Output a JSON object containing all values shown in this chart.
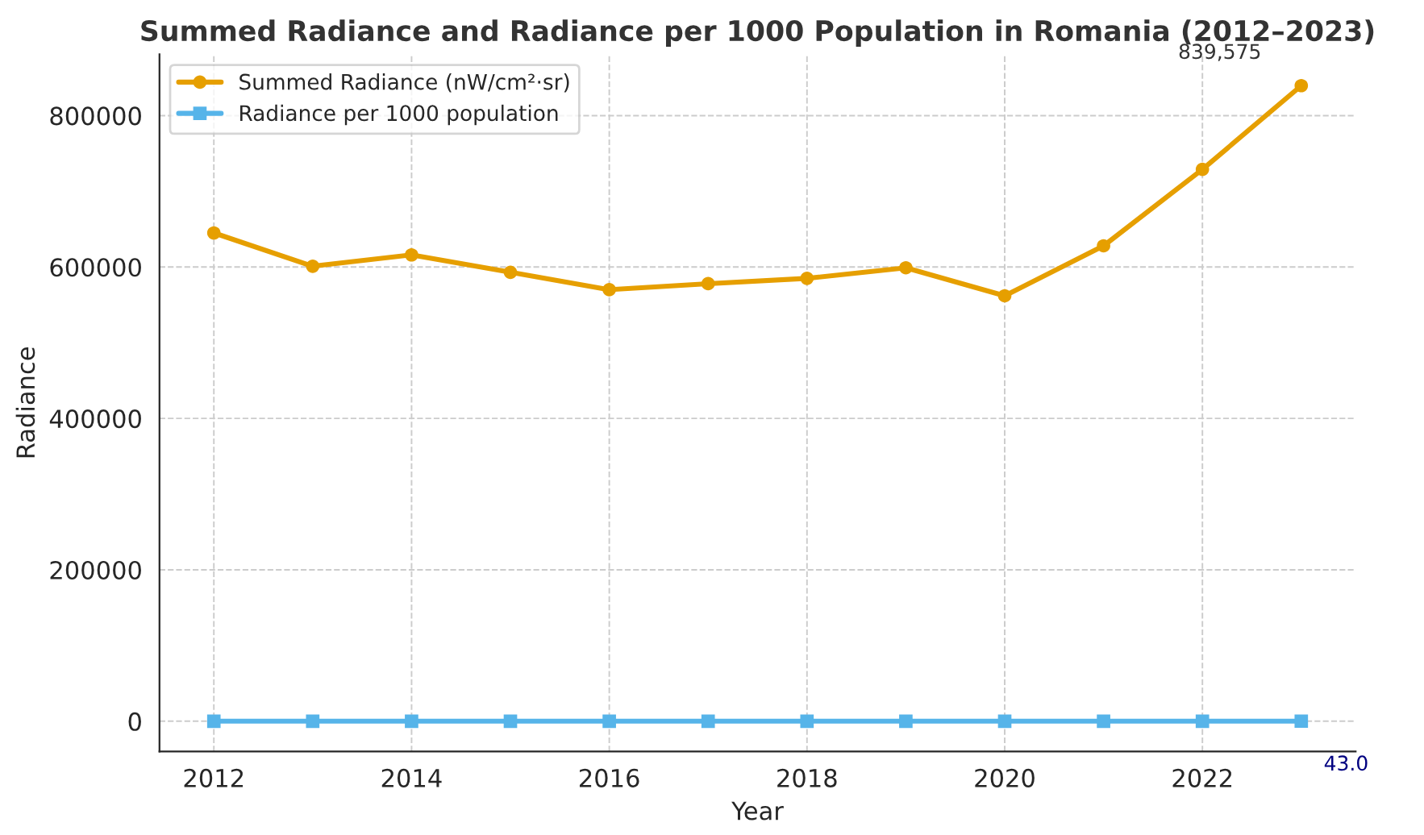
{
  "chart_data": {
    "type": "line",
    "title": "Summed Radiance and Radiance per 1000 Population in Romania (2012–2023)",
    "xlabel": "Year",
    "ylabel": "Radiance",
    "x": [
      2012,
      2013,
      2014,
      2015,
      2016,
      2017,
      2018,
      2019,
      2020,
      2021,
      2022,
      2023
    ],
    "series": [
      {
        "name": "Summed Radiance (nW/cm²·sr)",
        "color": "#e69f00",
        "marker": "circle",
        "values": [
          645000,
          601000,
          616000,
          593000,
          570000,
          578000,
          585000,
          599000,
          562000,
          628000,
          729000,
          839575
        ]
      },
      {
        "name": "Radiance per 1000 population",
        "color": "#56b4e9",
        "marker": "square",
        "values": [
          32,
          30,
          31,
          30,
          29,
          29,
          30,
          31,
          29,
          33,
          38,
          43.0
        ]
      }
    ],
    "annotations": [
      {
        "text": "839,575",
        "x": 2023,
        "y": 839575
      },
      {
        "text": "43.0",
        "x": 2023,
        "y": 43.0
      }
    ],
    "xlim": [
      2011.45,
      2023.55
    ],
    "xticks": [
      2012,
      2014,
      2016,
      2018,
      2020,
      2022
    ],
    "ylim": [
      -40000,
      881000
    ],
    "yticks": [
      0,
      200000,
      400000,
      600000,
      800000
    ],
    "grid": true,
    "legend": "top left",
    "line_style": "solid"
  }
}
